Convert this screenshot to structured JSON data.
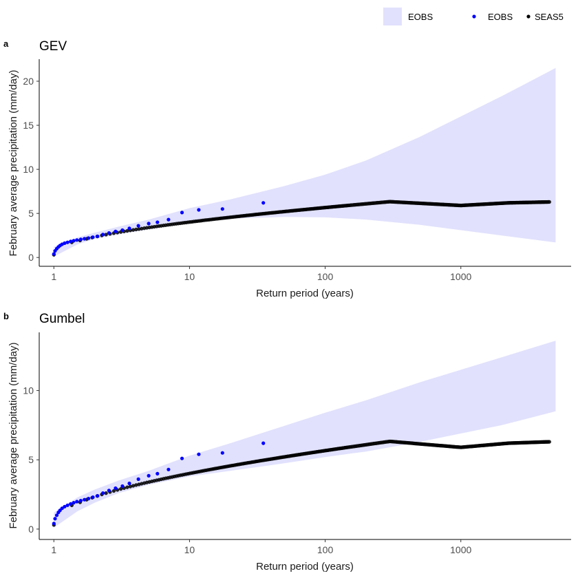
{
  "legend": {
    "items": [
      {
        "label": "EOBS",
        "kind": "band",
        "color": "#e1e1fd"
      },
      {
        "label": "EOBS",
        "kind": "point",
        "color": "#0000ff"
      },
      {
        "label": "SEAS5",
        "kind": "point",
        "color": "#000000"
      }
    ]
  },
  "chart_data": [
    {
      "tag": "a",
      "title": "GEV",
      "type": "scatter",
      "xlabel": "Return period (years)",
      "ylabel": "February average precipitation (mm/day)",
      "xscale": "log",
      "xlim": [
        0.78,
        6500
      ],
      "ylim": [
        -1.0,
        22.5
      ],
      "xticks": [
        1,
        10,
        100,
        1000
      ],
      "xtick_labels": [
        "1",
        "10",
        "100",
        "1000"
      ],
      "yticks": [
        0,
        5,
        10,
        15,
        20
      ],
      "ytick_labels": [
        "0",
        "5",
        "10",
        "15",
        "20"
      ],
      "band": {
        "name": "EOBS",
        "color": "#e1e1fd",
        "x": [
          1,
          1.5,
          2,
          3,
          5,
          10,
          20,
          50,
          100,
          200,
          500,
          1000,
          2000,
          5000
        ],
        "lower": [
          0.1,
          1.5,
          2.1,
          2.6,
          3.2,
          3.9,
          4.4,
          4.6,
          4.55,
          4.3,
          3.7,
          3.1,
          2.5,
          1.7
        ],
        "upper": [
          1.2,
          2.3,
          2.8,
          3.5,
          4.3,
          5.6,
          6.6,
          8.1,
          9.4,
          11.0,
          13.7,
          16.0,
          18.3,
          21.5
        ]
      },
      "seas5_points": {
        "name": "SEAS5",
        "color": "#000000",
        "x_min": 1.0,
        "x_max": 4500,
        "n": 420,
        "model": "log",
        "a": 3.45,
        "b": 0.4,
        "tail": [
          [
            1000,
            5.9
          ],
          [
            2250,
            6.2
          ],
          [
            4500,
            6.3
          ]
        ]
      },
      "eobs_points": {
        "name": "EOBS",
        "color": "#0000ff",
        "x": [
          1.0,
          1.02,
          1.05,
          1.08,
          1.11,
          1.15,
          1.2,
          1.26,
          1.33,
          1.4,
          1.48,
          1.58,
          1.68,
          1.8,
          1.94,
          2.1,
          2.3,
          2.55,
          2.85,
          3.2,
          3.6,
          4.2,
          5.0,
          5.8,
          7.0,
          8.8,
          11.7,
          17.5,
          35.0
        ],
        "y": [
          0.4,
          0.75,
          1.0,
          1.2,
          1.35,
          1.5,
          1.62,
          1.72,
          1.82,
          1.9,
          1.98,
          2.05,
          2.12,
          2.2,
          2.3,
          2.4,
          2.6,
          2.78,
          2.95,
          3.1,
          3.3,
          3.6,
          3.85,
          4.0,
          4.3,
          5.1,
          5.4,
          5.5,
          6.2
        ]
      }
    },
    {
      "tag": "b",
      "title": "Gumbel",
      "type": "scatter",
      "xlabel": "Return period (years)",
      "ylabel": "February average precipitation (mm/day)",
      "xscale": "log",
      "xlim": [
        0.78,
        6500
      ],
      "ylim": [
        -0.75,
        14.2
      ],
      "xticks": [
        1,
        10,
        100,
        1000
      ],
      "xtick_labels": [
        "1",
        "10",
        "100",
        "1000"
      ],
      "yticks": [
        0,
        5,
        10
      ],
      "ytick_labels": [
        "0",
        "5",
        "10"
      ],
      "band": {
        "name": "EOBS",
        "color": "#e1e1fd",
        "x": [
          1,
          1.5,
          2,
          3,
          5,
          10,
          20,
          50,
          100,
          200,
          500,
          1000,
          2000,
          5000
        ],
        "lower": [
          0.1,
          1.3,
          1.9,
          2.6,
          3.2,
          3.8,
          4.2,
          4.75,
          5.2,
          5.6,
          6.3,
          6.9,
          7.5,
          8.5
        ],
        "upper": [
          1.2,
          2.3,
          2.85,
          3.5,
          4.2,
          5.3,
          6.2,
          7.45,
          8.4,
          9.3,
          10.6,
          11.5,
          12.4,
          13.6
        ]
      },
      "seas5_points": {
        "name": "SEAS5",
        "color": "#000000",
        "x_min": 1.0,
        "x_max": 4500,
        "n": 420,
        "model": "log",
        "a": 3.45,
        "b": 0.4,
        "tail": [
          [
            1000,
            5.9
          ],
          [
            2250,
            6.2
          ],
          [
            4500,
            6.3
          ]
        ]
      },
      "eobs_points": {
        "name": "EOBS",
        "color": "#0000ff",
        "x": [
          1.0,
          1.02,
          1.05,
          1.08,
          1.11,
          1.15,
          1.2,
          1.26,
          1.33,
          1.4,
          1.48,
          1.58,
          1.68,
          1.8,
          1.94,
          2.1,
          2.3,
          2.55,
          2.85,
          3.2,
          3.6,
          4.2,
          5.0,
          5.8,
          7.0,
          8.8,
          11.7,
          17.5,
          35.0
        ],
        "y": [
          0.4,
          0.75,
          1.0,
          1.2,
          1.35,
          1.5,
          1.62,
          1.72,
          1.82,
          1.9,
          1.98,
          2.05,
          2.12,
          2.2,
          2.3,
          2.4,
          2.6,
          2.78,
          2.95,
          3.1,
          3.3,
          3.6,
          3.85,
          4.0,
          4.3,
          5.1,
          5.4,
          5.5,
          6.2
        ]
      }
    }
  ]
}
